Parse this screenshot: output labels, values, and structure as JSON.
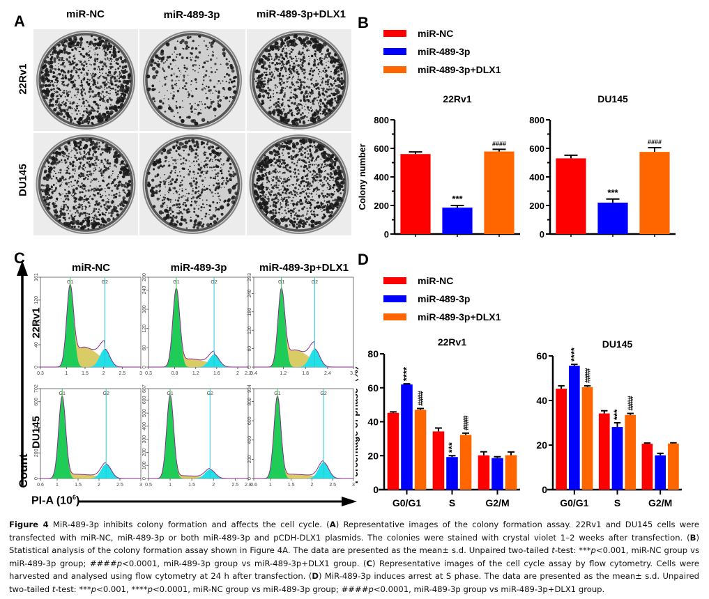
{
  "panels": {
    "A": {
      "letter": "A",
      "columns": [
        "miR-NC",
        "miR-489-3p",
        "miR-489-3p+DLX1"
      ],
      "rows": [
        "22Rv1",
        "DU145"
      ],
      "image_description": "Crystal violet stained colony formation dishes"
    },
    "B": {
      "letter": "B",
      "legend": [
        {
          "label": "miR-NC",
          "color": "#ff0000"
        },
        {
          "label": "miR-489-3p",
          "color": "#0000ff"
        },
        {
          "label": "miR-489-3p+DLX1",
          "color": "#ff6600"
        }
      ]
    },
    "C": {
      "letter": "C",
      "columns": [
        "miR-NC",
        "miR-489-3p",
        "miR-489-3p+DLX1"
      ],
      "rows": [
        "22Rv1",
        "DU145"
      ],
      "y_axis_label": "Count",
      "x_axis_label": "PI-A (10",
      "x_axis_label_sup": "6",
      "x_axis_label_end": ")",
      "gate_labels": [
        "G1",
        "G2"
      ],
      "histograms": [
        {
          "row": "22Rv1",
          "col": "miR-NC",
          "yticks": [
            "0",
            "40",
            "80",
            "120",
            "161"
          ],
          "ymax": 161,
          "xticks": [
            "0.3",
            "1",
            "1.5",
            "2",
            "2.5",
            "3"
          ],
          "xmin": 0.3,
          "xmax": 3.0,
          "g1": 1.1,
          "g2": 2.03,
          "g1h": 0.92,
          "g2h": 0.2,
          "sh": 0.3
        },
        {
          "row": "22Rv1",
          "col": "miR-489-3p",
          "yticks": [
            "0",
            "60",
            "120",
            "180",
            "240",
            "280"
          ],
          "ymax": 280,
          "xticks": [
            "0.3",
            "0.8",
            "1.2",
            "1.6",
            "2",
            "2.2"
          ],
          "xmin": 0.3,
          "xmax": 2.2,
          "g1": 0.83,
          "g2": 1.55,
          "g1h": 0.88,
          "g2h": 0.14,
          "sh": 0.12
        },
        {
          "row": "22Rv1",
          "col": "miR-489-3p+DLX1",
          "yticks": [
            "0",
            "60",
            "120",
            "180",
            "240",
            "293"
          ],
          "ymax": 293,
          "xticks": [
            "0.4",
            "1.2",
            "1.8",
            "2.4",
            "3.1"
          ],
          "xmin": 0.4,
          "xmax": 3.1,
          "g1": 1.15,
          "g2": 2.05,
          "g1h": 0.88,
          "g2h": 0.2,
          "sh": 0.26
        },
        {
          "row": "DU145",
          "col": "miR-NC",
          "yticks": [
            "0",
            "200",
            "400",
            "600",
            "702"
          ],
          "ymax": 702,
          "xticks": [
            "0.6",
            "1",
            "1.5",
            "2",
            "2.5",
            "3"
          ],
          "xmin": 0.6,
          "xmax": 3.0,
          "g1": 1.12,
          "g2": 2.17,
          "g1h": 0.92,
          "g2h": 0.16,
          "sh": 0.06
        },
        {
          "row": "DU145",
          "col": "miR-489-3p",
          "yticks": [
            "0",
            "100",
            "200",
            "300",
            "400",
            "500",
            "600",
            "687"
          ],
          "ymax": 687,
          "xticks": [
            "0.5",
            "1",
            "1.5",
            "2",
            "2.5",
            "2.8"
          ],
          "xmin": 0.5,
          "xmax": 2.8,
          "g1": 1.0,
          "g2": 1.92,
          "g1h": 0.93,
          "g2h": 0.1,
          "sh": 0.04
        },
        {
          "row": "DU145",
          "col": "miR-489-3p+DLX1",
          "yticks": [
            "0",
            "200",
            "400",
            "600",
            "800",
            "934"
          ],
          "ymax": 934,
          "xticks": [
            "0.6",
            "1",
            "1.5",
            "2",
            "2.5",
            "3"
          ],
          "xmin": 0.6,
          "xmax": 3.0,
          "g1": 1.17,
          "g2": 2.28,
          "g1h": 0.92,
          "g2h": 0.18,
          "sh": 0.06
        }
      ]
    },
    "D": {
      "letter": "D",
      "legend": [
        {
          "label": "miR-NC",
          "color": "#ff0000"
        },
        {
          "label": "miR-489-3p",
          "color": "#0000ff"
        },
        {
          "label": "miR-489-3p+DLX1",
          "color": "#ff6600"
        }
      ]
    }
  },
  "chart_data": [
    {
      "id": "B-22Rv1",
      "type": "bar",
      "title": "22Rv1",
      "ylabel": "Colony number",
      "xlabel": "",
      "ylim": [
        0,
        800
      ],
      "yticks": [
        0,
        200,
        400,
        600,
        800
      ],
      "categories": [
        "miR-NC",
        "miR-489-3p",
        "miR-489-3p+DLX1"
      ],
      "values": [
        560,
        185,
        578
      ],
      "errors": [
        15,
        15,
        15
      ],
      "annotations": [
        "",
        "***",
        "####"
      ],
      "colors": [
        "#ff0000",
        "#0000ff",
        "#ff6600"
      ]
    },
    {
      "id": "B-DU145",
      "type": "bar",
      "title": "DU145",
      "ylabel": "",
      "xlabel": "",
      "ylim": [
        0,
        800
      ],
      "yticks": [
        0,
        200,
        400,
        600,
        800
      ],
      "categories": [
        "miR-NC",
        "miR-489-3p",
        "miR-489-3p+DLX1"
      ],
      "values": [
        530,
        220,
        575
      ],
      "errors": [
        22,
        25,
        30
      ],
      "annotations": [
        "",
        "***",
        "####"
      ],
      "colors": [
        "#ff0000",
        "#0000ff",
        "#ff6600"
      ]
    },
    {
      "id": "D-22Rv1",
      "type": "bar",
      "title": "22Rv1",
      "ylabel": "Percentage of phase（%）",
      "xlabel": "",
      "ylim": [
        0,
        80
      ],
      "yticks": [
        0,
        20,
        40,
        60,
        80
      ],
      "categories": [
        "G0/G1",
        "S",
        "G2/M"
      ],
      "series": [
        {
          "name": "miR-NC",
          "color": "#ff0000",
          "values": [
            45.2,
            34.3,
            20.2
          ],
          "errors": [
            0.6,
            2.0,
            2.1
          ],
          "annotations": [
            "",
            "",
            ""
          ]
        },
        {
          "name": "miR-489-3p",
          "color": "#0000ff",
          "values": [
            62.0,
            19.2,
            18.6
          ],
          "errors": [
            0.3,
            0.8,
            0.8
          ],
          "annotations": [
            "****",
            "***",
            ""
          ]
        },
        {
          "name": "miR-489-3p+DLX1",
          "color": "#ff6600",
          "values": [
            47.0,
            32.3,
            20.3
          ],
          "errors": [
            0.8,
            1.0,
            1.9
          ],
          "annotations": [
            "####",
            "####",
            ""
          ]
        }
      ]
    },
    {
      "id": "D-DU145",
      "type": "bar",
      "title": "DU145",
      "ylabel": "",
      "xlabel": "",
      "ylim": [
        0,
        60
      ],
      "yticks": [
        0,
        20,
        40,
        60
      ],
      "categories": [
        "G0/G1",
        "S",
        "G2/M"
      ],
      "series": [
        {
          "name": "miR-NC",
          "color": "#ff0000",
          "values": [
            45.3,
            34.2,
            20.6
          ],
          "errors": [
            1.3,
            1.2,
            0.3
          ],
          "annotations": [
            "",
            "",
            ""
          ]
        },
        {
          "name": "miR-489-3p",
          "color": "#0000ff",
          "values": [
            55.6,
            28.1,
            15.4
          ],
          "errors": [
            0.6,
            1.9,
            0.9
          ],
          "annotations": [
            "****",
            "***",
            ""
          ]
        },
        {
          "name": "miR-489-3p+DLX1",
          "color": "#ff6600",
          "values": [
            46.0,
            33.5,
            20.7
          ],
          "errors": [
            0.6,
            0.7,
            0.3
          ],
          "annotations": [
            "####",
            "####",
            ""
          ]
        }
      ]
    }
  ],
  "caption": {
    "figure_label": "Figure 4",
    "segments": [
      {
        "t": " MiR-489-3p inhibits colony formation and affects the cell cycle. ("
      },
      {
        "b": "A"
      },
      {
        "t": ") Representative images of the colony formation assay. 22Rv1 and DU145 cells were transfected with miR-NC, miR-489-3p or both miR-489-3p and pCDH-DLX1 plasmids. The colonies were stained with crystal violet 1–2 weeks after transfection. ("
      },
      {
        "b": "B"
      },
      {
        "t": ") Statistical analysis of the colony formation assay shown in Figure 4A. The data are presented as the mean± s.d. Unpaired two-tailed "
      },
      {
        "i": "t"
      },
      {
        "t": "-test: ***"
      },
      {
        "i": "p"
      },
      {
        "t": "<0.001, miR-NC group vs miR-489-3p group; ####"
      },
      {
        "i": "p"
      },
      {
        "t": "<0.0001, miR-489-3p group vs miR-489-3p+DLX1 group. ("
      },
      {
        "b": "C"
      },
      {
        "t": ") Representative images of the cell cycle assay by flow cytometry. Cells were harvested and analysed using flow cytometry at 24 h after transfection. ("
      },
      {
        "b": "D"
      },
      {
        "t": ") MiR-489-3p induces arrest at S phase. The data are presented as the mean± s.d. Unpaired two-tailed "
      },
      {
        "i": "t"
      },
      {
        "t": "-test: ***"
      },
      {
        "i": "p"
      },
      {
        "t": "<0.001, ****"
      },
      {
        "i": "p"
      },
      {
        "t": "<0.0001, miR-NC group vs miR-489-3p group; ####"
      },
      {
        "i": "p"
      },
      {
        "t": "<0.0001, miR-489-3p group vs miR-489-3p+DLX1 group."
      }
    ]
  }
}
